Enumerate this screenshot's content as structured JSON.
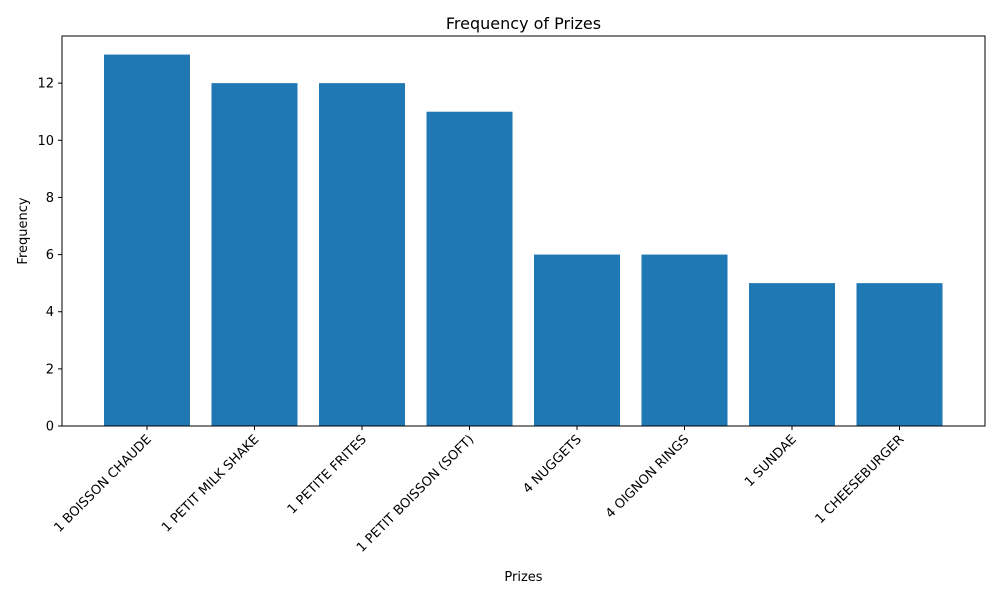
{
  "chart_data": {
    "type": "bar",
    "title": "Frequency of Prizes",
    "xlabel": "Prizes",
    "ylabel": "Frequency",
    "categories": [
      "1 BOISSON CHAUDE",
      "1 PETIT MILK SHAKE",
      "1 PETITE FRITES",
      "1 PETIT BOISSON (SOFT)",
      "4 NUGGETS",
      "4 OIGNON RINGS",
      "1 SUNDAE",
      "1 CHEESEBURGER"
    ],
    "values": [
      13,
      12,
      12,
      11,
      6,
      6,
      5,
      5
    ],
    "ylim": [
      0,
      13.65
    ],
    "yticks": [
      0,
      2,
      4,
      6,
      8,
      10,
      12
    ],
    "grid": false,
    "bar_color": "#1f77b4"
  }
}
